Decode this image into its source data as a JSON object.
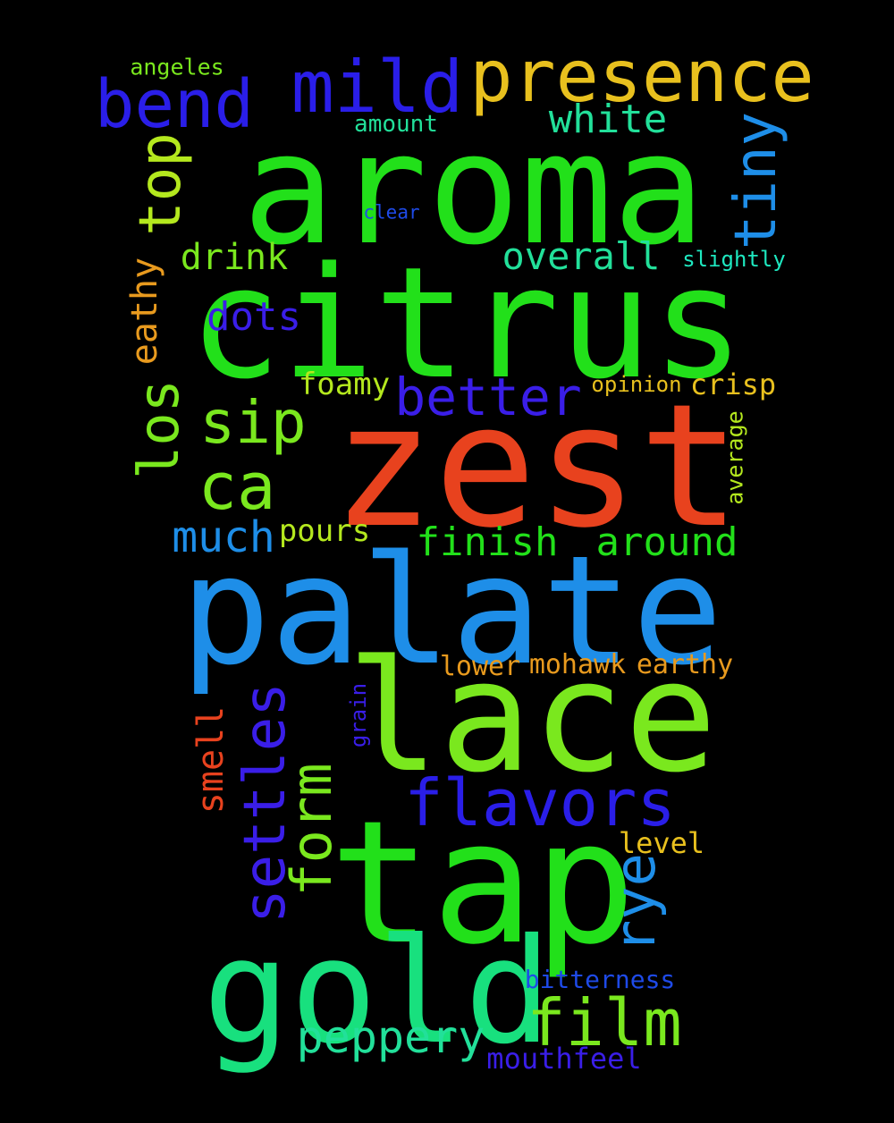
{
  "words": [
    {
      "id": "aroma",
      "text": "aroma",
      "color": "#22e01a"
    },
    {
      "id": "citrus",
      "text": "citrus",
      "color": "#22e01a"
    },
    {
      "id": "zest",
      "text": "zest",
      "color": "#e8421e"
    },
    {
      "id": "palate",
      "text": "palate",
      "color": "#1e8ee8"
    },
    {
      "id": "lace",
      "text": "lace",
      "color": "#7ae81e"
    },
    {
      "id": "tap",
      "text": "tap",
      "color": "#22e01a"
    },
    {
      "id": "gold",
      "text": "gold",
      "color": "#18e07e"
    },
    {
      "id": "presence",
      "text": "presence",
      "color": "#e8c01e"
    },
    {
      "id": "mild",
      "text": "mild",
      "color": "#2a1ee8"
    },
    {
      "id": "bend",
      "text": "bend",
      "color": "#2a1ee8"
    },
    {
      "id": "white",
      "text": "white",
      "color": "#22e09a"
    },
    {
      "id": "angeles",
      "text": "angeles",
      "color": "#7ae81e"
    },
    {
      "id": "amount",
      "text": "amount",
      "color": "#22e09a"
    },
    {
      "id": "clear",
      "text": "clear",
      "color": "#1e4ae8"
    },
    {
      "id": "tiny",
      "text": "tiny",
      "color": "#1e8ee8"
    },
    {
      "id": "top",
      "text": "top",
      "color": "#b4e81e"
    },
    {
      "id": "drink",
      "text": "drink",
      "color": "#7ae81e"
    },
    {
      "id": "overall",
      "text": "overall",
      "color": "#22e09a"
    },
    {
      "id": "slightly",
      "text": "slightly",
      "color": "#1ee8c0"
    },
    {
      "id": "eathy",
      "text": "eathy",
      "color": "#e89a1e"
    },
    {
      "id": "dots",
      "text": "dots",
      "color": "#3a1ee8"
    },
    {
      "id": "sip",
      "text": "sip",
      "color": "#7ae81e"
    },
    {
      "id": "better",
      "text": "better",
      "color": "#3a1ee8"
    },
    {
      "id": "foamy",
      "text": "foamy",
      "color": "#b4e81e"
    },
    {
      "id": "opinion",
      "text": "opinion",
      "color": "#e8c01e"
    },
    {
      "id": "crisp",
      "text": "crisp",
      "color": "#e8c01e"
    },
    {
      "id": "los",
      "text": "los",
      "color": "#7ae81e"
    },
    {
      "id": "average",
      "text": "average",
      "color": "#b4e81e"
    },
    {
      "id": "ca",
      "text": "ca",
      "color": "#7ae81e"
    },
    {
      "id": "much",
      "text": "much",
      "color": "#1e8ee8"
    },
    {
      "id": "pours",
      "text": "pours",
      "color": "#b4e81e"
    },
    {
      "id": "finish",
      "text": "finish",
      "color": "#22e01a"
    },
    {
      "id": "around",
      "text": "around",
      "color": "#22e01a"
    },
    {
      "id": "lower",
      "text": "lower",
      "color": "#e89a1e"
    },
    {
      "id": "mohawk",
      "text": "mohawk",
      "color": "#e89a1e"
    },
    {
      "id": "earthy",
      "text": "earthy",
      "color": "#e89a1e"
    },
    {
      "id": "smell",
      "text": "smell",
      "color": "#e8421e"
    },
    {
      "id": "settles",
      "text": "settles",
      "color": "#3a1ee8"
    },
    {
      "id": "grain",
      "text": "grain",
      "color": "#3a1ee8"
    },
    {
      "id": "form",
      "text": "form",
      "color": "#7ae81e"
    },
    {
      "id": "flavors",
      "text": "flavors",
      "color": "#2a1ee8"
    },
    {
      "id": "level",
      "text": "level",
      "color": "#e8c01e"
    },
    {
      "id": "rye",
      "text": "rye",
      "color": "#1e8ee8"
    },
    {
      "id": "bitterness",
      "text": "bitterness",
      "color": "#1e4ae8"
    },
    {
      "id": "film",
      "text": "film",
      "color": "#7ae81e"
    },
    {
      "id": "peppery",
      "text": "peppery",
      "color": "#22e09a"
    },
    {
      "id": "mouthfeel",
      "text": "mouthfeel",
      "color": "#3a1ee8"
    }
  ]
}
